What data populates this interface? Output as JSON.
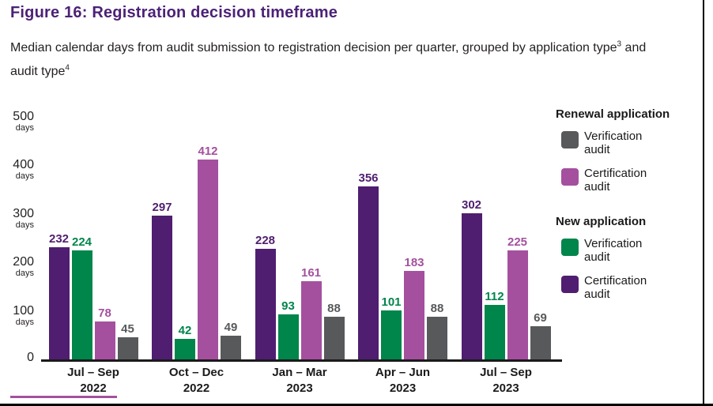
{
  "figure": {
    "title": "Figure 16: Registration decision timeframe",
    "subtitle_parts": [
      {
        "text": "Median calendar days from audit submission to registration decision per quarter, grouped by application type"
      },
      {
        "sup": "3"
      },
      {
        "text": " and audit type"
      },
      {
        "sup": "4"
      }
    ]
  },
  "chart_data": {
    "type": "bar",
    "title": "Figure 16: Registration decision timeframe",
    "unit": "days",
    "yticks": [
      0,
      100,
      200,
      300,
      400,
      500
    ],
    "ylim": [
      0,
      500
    ],
    "grid": false,
    "legend_position": "right",
    "categories": [
      {
        "quarter": "Jul – Sep",
        "year": "2022"
      },
      {
        "quarter": "Oct – Dec",
        "year": "2022"
      },
      {
        "quarter": "Jan – Mar",
        "year": "2023"
      },
      {
        "quarter": "Apr – Jun",
        "year": "2023"
      },
      {
        "quarter": "Jul – Sep",
        "year": "2023"
      }
    ],
    "series": [
      {
        "name": "New application - Certification audit",
        "color": "#4f1e70",
        "values": [
          232,
          297,
          228,
          356,
          302
        ]
      },
      {
        "name": "New application - Verification audit",
        "color": "#00854b",
        "values": [
          224,
          42,
          93,
          101,
          112
        ]
      },
      {
        "name": "Renewal application - Certification audit",
        "color": "#a4509e",
        "values": [
          78,
          412,
          161,
          183,
          225
        ]
      },
      {
        "name": "Renewal application - Verification audit",
        "color": "#58595b",
        "values": [
          45,
          49,
          88,
          88,
          69
        ]
      }
    ]
  },
  "legend": {
    "groups": [
      {
        "heading": "Renewal application",
        "items": [
          {
            "label": "Verification audit",
            "color": "#58595b"
          },
          {
            "label": "Certification audit",
            "color": "#a4509e"
          }
        ]
      },
      {
        "heading": "New application",
        "items": [
          {
            "label": "Verification audit",
            "color": "#00854b"
          },
          {
            "label": "Certification audit",
            "color": "#4f1e70"
          }
        ]
      }
    ]
  },
  "colors": {
    "title": "#4c2177",
    "text": "#231f20",
    "axis": "#1a1a1a",
    "accent_rule": "#a4509e"
  }
}
